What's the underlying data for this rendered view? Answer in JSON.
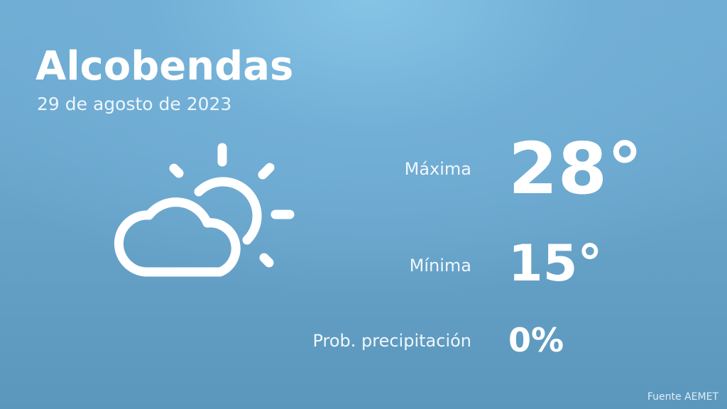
{
  "location": {
    "city": "Alcobendas",
    "date": "29 de agosto de 2023"
  },
  "weather": {
    "icon": "partly-cloudy-icon",
    "max_label": "Máxima",
    "max_value": "28°",
    "min_label": "Mínima",
    "min_value": "15°",
    "precip_label": "Prob. precipitación",
    "precip_value": "0%"
  },
  "footer": {
    "source": "Fuente AEMET"
  },
  "colors": {
    "background_top": "#86c4e6",
    "background_bottom": "#5b97bc",
    "text": "#ffffff"
  }
}
